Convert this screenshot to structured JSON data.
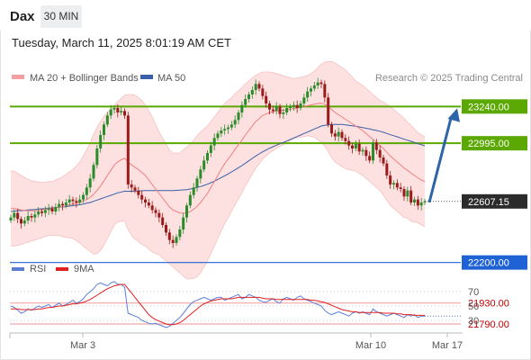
{
  "header": {
    "symbol": "Dax",
    "timeframe": "30 MIN",
    "datetime": "Tuesday, March 11, 2025 8:01:19 AM CET"
  },
  "legend": {
    "ma20": "MA 20 + Bollinger Bands",
    "ma50": "MA 50",
    "credit": "Research © 2025 Trading Central",
    "rsi": "RSI",
    "rsi_ma": "9MA"
  },
  "colors": {
    "price_up": "#2a8c2a",
    "price_down": "#9b1a1a",
    "bollinger_fill": "#fde0e0",
    "ma20": "#f07f7f",
    "ma50": "#3a5fa8",
    "resistance": "#5aa800",
    "support": "#1f62d6",
    "target": "#f5a6a6",
    "last_price": "#2b2b2b",
    "rsi": "#5a7ed8",
    "rsi_ma": "#e02020",
    "arrow": "#2c65a8"
  },
  "chart_data": [
    {
      "type": "candlestick",
      "y_range": [
        21700,
        23500
      ],
      "x_ticks": [
        "Mar 3",
        "Mar 10",
        "Mar 17"
      ],
      "last_price": {
        "value": 22607.15,
        "label": "22607.15"
      },
      "levels": [
        {
          "label": "23240.00",
          "value": 23240,
          "kind": "resistance"
        },
        {
          "label": "22995.00",
          "value": 22995,
          "kind": "resistance"
        },
        {
          "label": "22200.00",
          "value": 22200,
          "kind": "support"
        },
        {
          "label": "21930.00",
          "value": 21930,
          "kind": "target"
        },
        {
          "label": "21790.00",
          "value": 21790,
          "kind": "target"
        }
      ],
      "forecast_arrow": {
        "from": 22607,
        "to": 23240
      },
      "closes": [
        22500,
        22530,
        22490,
        22460,
        22480,
        22510,
        22500,
        22520,
        22540,
        22530,
        22550,
        22560,
        22540,
        22570,
        22590,
        22580,
        22600,
        22620,
        22610,
        22600,
        22620,
        22650,
        22700,
        22760,
        22850,
        22960,
        23050,
        23120,
        23180,
        23220,
        23230,
        23200,
        23210,
        23180,
        22720,
        22700,
        22680,
        22650,
        22620,
        22600,
        22580,
        22550,
        22530,
        22500,
        22450,
        22400,
        22350,
        22330,
        22370,
        22420,
        22500,
        22580,
        22650,
        22700,
        22760,
        22820,
        22880,
        22930,
        22980,
        23030,
        23060,
        23080,
        23090,
        23100,
        23120,
        23150,
        23200,
        23250,
        23290,
        23320,
        23350,
        23390,
        23360,
        23310,
        23260,
        23220,
        23210,
        23240,
        23190,
        23200,
        23230,
        23240,
        23250,
        23230,
        23260,
        23300,
        23340,
        23360,
        23380,
        23400,
        23390,
        23300,
        23120,
        23060,
        23040,
        23070,
        23030,
        23010,
        22980,
        22960,
        22990,
        22940,
        22950,
        22910,
        22880,
        23000,
        22950,
        22900,
        22860,
        22780,
        22720,
        22730,
        22700,
        22690,
        22640,
        22680,
        22600,
        22620,
        22580,
        22600,
        22607
      ],
      "ma20": [
        22560,
        22560,
        22555,
        22550,
        22548,
        22545,
        22545,
        22545,
        22548,
        22550,
        22555,
        22560,
        22560,
        22565,
        22570,
        22572,
        22578,
        22585,
        22590,
        22595,
        22600,
        22610,
        22620,
        22635,
        22655,
        22680,
        22710,
        22745,
        22780,
        22815,
        22850,
        22870,
        22885,
        22895,
        22870,
        22850,
        22835,
        22820,
        22800,
        22780,
        22750,
        22720,
        22690,
        22660,
        22630,
        22600,
        22570,
        22550,
        22540,
        22530,
        22530,
        22530,
        22540,
        22555,
        22575,
        22600,
        22630,
        22660,
        22700,
        22740,
        22780,
        22820,
        22860,
        22890,
        22920,
        22955,
        22985,
        23015,
        23050,
        23080,
        23110,
        23140,
        23160,
        23180,
        23190,
        23200,
        23205,
        23210,
        23215,
        23215,
        23218,
        23222,
        23225,
        23230,
        23235,
        23240,
        23245,
        23250,
        23255,
        23260,
        23262,
        23255,
        23240,
        23220,
        23200,
        23185,
        23170,
        23155,
        23140,
        23125,
        23110,
        23095,
        23080,
        23060,
        23040,
        23020,
        23000,
        22980,
        22960,
        22935,
        22910,
        22890,
        22870,
        22850,
        22830,
        22815,
        22795,
        22780,
        22765,
        22750,
        22740
      ],
      "ma50": [
        22540,
        22542,
        22544,
        22546,
        22548,
        22550,
        22552,
        22554,
        22556,
        22558,
        22560,
        22562,
        22564,
        22566,
        22568,
        22570,
        22573,
        22576,
        22579,
        22582,
        22585,
        22590,
        22595,
        22600,
        22608,
        22616,
        22624,
        22632,
        22640,
        22648,
        22656,
        22664,
        22670,
        22675,
        22675,
        22675,
        22676,
        22677,
        22678,
        22679,
        22680,
        22680,
        22680,
        22680,
        22680,
        22680,
        22680,
        22680,
        22681,
        22682,
        22684,
        22686,
        22690,
        22694,
        22700,
        22706,
        22714,
        22722,
        22732,
        22742,
        22754,
        22766,
        22778,
        22790,
        22804,
        22818,
        22832,
        22846,
        22862,
        22878,
        22894,
        22910,
        22924,
        22938,
        22950,
        22962,
        22972,
        22982,
        22992,
        23000,
        23010,
        23020,
        23030,
        23040,
        23050,
        23060,
        23070,
        23080,
        23090,
        23100,
        23110,
        23115,
        23118,
        23120,
        23120,
        23120,
        23120,
        23118,
        23115,
        23112,
        23108,
        23104,
        23100,
        23095,
        23090,
        23085,
        23080,
        23075,
        23068,
        23060,
        23052,
        23045,
        23038,
        23030,
        23022,
        23015,
        23008,
        23000,
        22992,
        22985,
        22978
      ],
      "bb_width": [
        250,
        250,
        240,
        230,
        220,
        210,
        200,
        195,
        190,
        185,
        180,
        180,
        180,
        185,
        190,
        200,
        210,
        220,
        230,
        250,
        270,
        300,
        330,
        360,
        400,
        420,
        430,
        430,
        420,
        410,
        400,
        400,
        410,
        420,
        450,
        470,
        480,
        480,
        480,
        470,
        460,
        450,
        430,
        410,
        400,
        390,
        380,
        380,
        390,
        400,
        420,
        440,
        450,
        460,
        470,
        470,
        460,
        450,
        440,
        430,
        420,
        410,
        400,
        390,
        380,
        370,
        360,
        350,
        340,
        330,
        320,
        310,
        300,
        290,
        280,
        270,
        260,
        250,
        240,
        230,
        220,
        210,
        200,
        200,
        200,
        200,
        200,
        210,
        220,
        240,
        260,
        280,
        300,
        320,
        330,
        330,
        330,
        330,
        320,
        310,
        300,
        300,
        300,
        300,
        300,
        300,
        300,
        300,
        310,
        320,
        330,
        330,
        330,
        330,
        330,
        320,
        320,
        310,
        300,
        300,
        300
      ]
    },
    {
      "type": "line",
      "name": "RSI",
      "y_ticks": [
        70,
        50,
        30
      ],
      "y_range": [
        15,
        90
      ],
      "rsi": [
        50,
        48,
        44,
        40,
        42,
        46,
        44,
        47,
        50,
        48,
        50,
        52,
        48,
        51,
        54,
        50,
        52,
        55,
        58,
        54,
        56,
        60,
        66,
        70,
        74,
        80,
        82,
        80,
        78,
        82,
        84,
        80,
        80,
        76,
        40,
        38,
        36,
        34,
        30,
        28,
        26,
        25,
        26,
        24,
        22,
        20,
        22,
        26,
        30,
        34,
        40,
        46,
        52,
        56,
        58,
        60,
        62,
        60,
        58,
        60,
        62,
        62,
        58,
        60,
        62,
        64,
        66,
        60,
        62,
        66,
        64,
        62,
        58,
        56,
        55,
        58,
        60,
        56,
        54,
        60,
        62,
        60,
        58,
        62,
        64,
        60,
        58,
        56,
        54,
        52,
        50,
        44,
        40,
        38,
        40,
        42,
        40,
        38,
        36,
        40,
        42,
        40,
        42,
        40,
        38,
        46,
        42,
        40,
        38,
        36,
        38,
        40,
        38,
        36,
        34,
        38,
        36,
        38,
        34,
        36,
        36
      ],
      "rsi_ma": [
        46,
        46,
        46,
        45,
        45,
        45,
        45,
        45,
        46,
        46,
        47,
        48,
        48,
        49,
        50,
        50,
        51,
        52,
        53,
        53,
        54,
        55,
        57,
        59,
        62,
        65,
        68,
        71,
        74,
        76,
        78,
        79,
        80,
        80,
        74,
        68,
        62,
        56,
        50,
        44,
        38,
        34,
        31,
        29,
        27,
        25,
        24,
        24,
        25,
        27,
        30,
        34,
        38,
        42,
        46,
        50,
        53,
        55,
        57,
        58,
        59,
        60,
        60,
        60,
        60,
        61,
        62,
        62,
        62,
        62,
        62,
        62,
        62,
        61,
        60,
        60,
        60,
        59,
        59,
        59,
        59,
        59,
        59,
        59,
        59,
        59,
        59,
        58,
        58,
        57,
        56,
        55,
        53,
        51,
        49,
        47,
        45,
        44,
        43,
        42,
        42,
        41,
        41,
        41,
        41,
        41,
        41,
        41,
        40,
        40,
        40,
        40,
        39,
        39,
        38,
        38,
        38,
        37,
        37,
        37,
        37
      ]
    }
  ]
}
